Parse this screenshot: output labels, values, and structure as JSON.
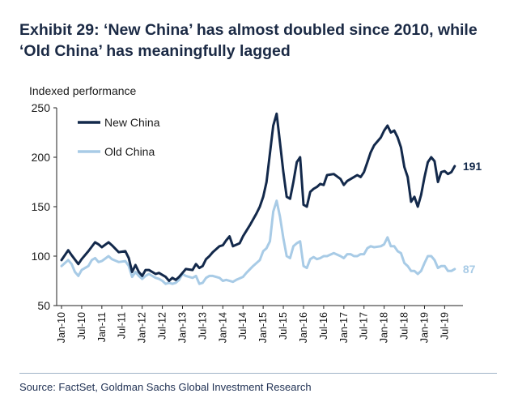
{
  "header": {
    "title": "Exhibit 29: ‘New China’ has almost doubled since 2010, while ‘Old China’ has meaningfully lagged"
  },
  "footer": {
    "source": "Source: FactSet, Goldman Sachs Global Investment Research"
  },
  "colors": {
    "new_china": "#13294b",
    "old_china": "#a8cbe6",
    "axis": "#222222",
    "text": "#1a1a1a"
  },
  "chart_data": {
    "type": "line",
    "title": "",
    "ylabel": "Indexed performance",
    "xlabel": "",
    "ylim": [
      50,
      250
    ],
    "yticks": [
      50,
      100,
      150,
      200,
      250
    ],
    "grid": false,
    "legend": "top-left",
    "xticks": [
      "Jan-10",
      "Jul-10",
      "Jan-11",
      "Jul-11",
      "Jan-12",
      "Jul-12",
      "Jan-13",
      "Jul-13",
      "Jan-14",
      "Jul-14",
      "Jan-15",
      "Jul-15",
      "Jan-16",
      "Jul-16",
      "Jan-17",
      "Jul-17",
      "Jan-18",
      "Jul-18",
      "Jan-19",
      "Jul-19"
    ],
    "series": [
      {
        "name": "New China",
        "end_label": "191",
        "points": [
          [
            "Jan-10",
            96
          ],
          [
            "Mar-10",
            106
          ],
          [
            "Apr-10",
            101
          ],
          [
            "Jun-10",
            92
          ],
          [
            "Jul-10",
            97
          ],
          [
            "Sep-10",
            105
          ],
          [
            "Nov-10",
            114
          ],
          [
            "Dec-10",
            112
          ],
          [
            "Jan-11",
            109
          ],
          [
            "Mar-11",
            114
          ],
          [
            "Apr-11",
            111
          ],
          [
            "Jun-11",
            104
          ],
          [
            "Aug-11",
            105
          ],
          [
            "Sep-11",
            98
          ],
          [
            "Oct-11",
            84
          ],
          [
            "Nov-11",
            91
          ],
          [
            "Dec-11",
            84
          ],
          [
            "Jan-12",
            80
          ],
          [
            "Feb-12",
            86
          ],
          [
            "Mar-12",
            86
          ],
          [
            "May-12",
            82
          ],
          [
            "Jun-12",
            83
          ],
          [
            "Jul-12",
            81
          ],
          [
            "Aug-12",
            79
          ],
          [
            "Sep-12",
            75
          ],
          [
            "Oct-12",
            78
          ],
          [
            "Nov-12",
            76
          ],
          [
            "Dec-12",
            79
          ],
          [
            "Jan-13",
            83
          ],
          [
            "Feb-13",
            87
          ],
          [
            "Apr-13",
            86
          ],
          [
            "May-13",
            92
          ],
          [
            "Jun-13",
            88
          ],
          [
            "Jul-13",
            90
          ],
          [
            "Aug-13",
            97
          ],
          [
            "Sep-13",
            100
          ],
          [
            "Oct-13",
            104
          ],
          [
            "Dec-13",
            110
          ],
          [
            "Jan-14",
            111
          ],
          [
            "Feb-14",
            116
          ],
          [
            "Mar-14",
            120
          ],
          [
            "Apr-14",
            110
          ],
          [
            "Jun-14",
            113
          ],
          [
            "Jul-14",
            120
          ],
          [
            "Sep-14",
            131
          ],
          [
            "Nov-14",
            143
          ],
          [
            "Dec-14",
            150
          ],
          [
            "Jan-15",
            160
          ],
          [
            "Feb-15",
            175
          ],
          [
            "Apr-15",
            232
          ],
          [
            "May-15",
            244
          ],
          [
            "Jun-15",
            215
          ],
          [
            "Jul-15",
            185
          ],
          [
            "Aug-15",
            160
          ],
          [
            "Sep-15",
            158
          ],
          [
            "Oct-15",
            175
          ],
          [
            "Nov-15",
            195
          ],
          [
            "Dec-15",
            200
          ],
          [
            "Jan-16",
            152
          ],
          [
            "Feb-16",
            150
          ],
          [
            "Mar-16",
            165
          ],
          [
            "Apr-16",
            168
          ],
          [
            "May-16",
            170
          ],
          [
            "Jun-16",
            173
          ],
          [
            "Jul-16",
            172
          ],
          [
            "Aug-16",
            182
          ],
          [
            "Oct-16",
            183
          ],
          [
            "Dec-16",
            178
          ],
          [
            "Jan-17",
            172
          ],
          [
            "Feb-17",
            176
          ],
          [
            "Apr-17",
            180
          ],
          [
            "May-17",
            182
          ],
          [
            "Jun-17",
            180
          ],
          [
            "Jul-17",
            185
          ],
          [
            "Aug-17",
            195
          ],
          [
            "Sep-17",
            205
          ],
          [
            "Oct-17",
            212
          ],
          [
            "Dec-17",
            220
          ],
          [
            "Jan-18",
            227
          ],
          [
            "Feb-18",
            232
          ],
          [
            "Mar-18",
            225
          ],
          [
            "Apr-18",
            227
          ],
          [
            "May-18",
            220
          ],
          [
            "Jun-18",
            210
          ],
          [
            "Jul-18",
            190
          ],
          [
            "Aug-18",
            180
          ],
          [
            "Sep-18",
            155
          ],
          [
            "Oct-18",
            160
          ],
          [
            "Nov-18",
            150
          ],
          [
            "Dec-18",
            162
          ],
          [
            "Jan-19",
            180
          ],
          [
            "Feb-19",
            195
          ],
          [
            "Mar-19",
            200
          ],
          [
            "Apr-19",
            196
          ],
          [
            "May-19",
            175
          ],
          [
            "Jun-19",
            185
          ],
          [
            "Jul-19",
            186
          ],
          [
            "Aug-19",
            183
          ],
          [
            "Sep-19",
            185
          ],
          [
            "Oct-19",
            191
          ]
        ]
      },
      {
        "name": "Old China",
        "end_label": "87",
        "points": [
          [
            "Jan-10",
            90
          ],
          [
            "Mar-10",
            96
          ],
          [
            "Apr-10",
            92
          ],
          [
            "May-10",
            84
          ],
          [
            "Jun-10",
            80
          ],
          [
            "Jul-10",
            86
          ],
          [
            "Sep-10",
            90
          ],
          [
            "Oct-10",
            96
          ],
          [
            "Nov-10",
            98
          ],
          [
            "Dec-10",
            94
          ],
          [
            "Jan-11",
            95
          ],
          [
            "Mar-11",
            100
          ],
          [
            "Apr-11",
            97
          ],
          [
            "Jun-11",
            94
          ],
          [
            "Aug-11",
            95
          ],
          [
            "Sep-11",
            90
          ],
          [
            "Oct-11",
            79
          ],
          [
            "Nov-11",
            84
          ],
          [
            "Dec-11",
            80
          ],
          [
            "Jan-12",
            77
          ],
          [
            "Feb-12",
            80
          ],
          [
            "Mar-12",
            82
          ],
          [
            "May-12",
            78
          ],
          [
            "Jun-12",
            77
          ],
          [
            "Jul-12",
            75
          ],
          [
            "Aug-12",
            72
          ],
          [
            "Sep-12",
            73
          ],
          [
            "Oct-12",
            72
          ],
          [
            "Nov-12",
            73
          ],
          [
            "Dec-12",
            76
          ],
          [
            "Jan-13",
            82
          ],
          [
            "Feb-13",
            80
          ],
          [
            "Apr-13",
            78
          ],
          [
            "May-13",
            80
          ],
          [
            "Jun-13",
            72
          ],
          [
            "Jul-13",
            73
          ],
          [
            "Aug-13",
            78
          ],
          [
            "Sep-13",
            80
          ],
          [
            "Oct-13",
            80
          ],
          [
            "Dec-13",
            78
          ],
          [
            "Jan-14",
            75
          ],
          [
            "Feb-14",
            76
          ],
          [
            "Apr-14",
            74
          ],
          [
            "May-14",
            76
          ],
          [
            "Jul-14",
            79
          ],
          [
            "Aug-14",
            83
          ],
          [
            "Oct-14",
            90
          ],
          [
            "Dec-14",
            96
          ],
          [
            "Jan-15",
            105
          ],
          [
            "Feb-15",
            108
          ],
          [
            "Mar-15",
            115
          ],
          [
            "Apr-15",
            145
          ],
          [
            "May-15",
            156
          ],
          [
            "Jun-15",
            140
          ],
          [
            "Jul-15",
            118
          ],
          [
            "Aug-15",
            100
          ],
          [
            "Sep-15",
            98
          ],
          [
            "Oct-15",
            110
          ],
          [
            "Nov-15",
            113
          ],
          [
            "Dec-15",
            115
          ],
          [
            "Jan-16",
            90
          ],
          [
            "Feb-16",
            88
          ],
          [
            "Mar-16",
            97
          ],
          [
            "Apr-16",
            99
          ],
          [
            "May-16",
            97
          ],
          [
            "Jun-16",
            98
          ],
          [
            "Jul-16",
            100
          ],
          [
            "Aug-16",
            100
          ],
          [
            "Oct-16",
            103
          ],
          [
            "Dec-16",
            100
          ],
          [
            "Jan-17",
            98
          ],
          [
            "Feb-17",
            102
          ],
          [
            "Mar-17",
            102
          ],
          [
            "Apr-17",
            100
          ],
          [
            "May-17",
            100
          ],
          [
            "Jun-17",
            102
          ],
          [
            "Jul-17",
            102
          ],
          [
            "Aug-17",
            108
          ],
          [
            "Sep-17",
            110
          ],
          [
            "Oct-17",
            109
          ],
          [
            "Dec-17",
            110
          ],
          [
            "Jan-18",
            112
          ],
          [
            "Feb-18",
            119
          ],
          [
            "Mar-18",
            110
          ],
          [
            "Apr-18",
            110
          ],
          [
            "May-18",
            105
          ],
          [
            "Jun-18",
            103
          ],
          [
            "Jul-18",
            93
          ],
          [
            "Aug-18",
            90
          ],
          [
            "Sep-18",
            85
          ],
          [
            "Oct-18",
            85
          ],
          [
            "Nov-18",
            82
          ],
          [
            "Dec-18",
            85
          ],
          [
            "Jan-19",
            93
          ],
          [
            "Feb-19",
            100
          ],
          [
            "Mar-19",
            100
          ],
          [
            "Apr-19",
            96
          ],
          [
            "May-19",
            88
          ],
          [
            "Jun-19",
            90
          ],
          [
            "Jul-19",
            90
          ],
          [
            "Aug-19",
            85
          ],
          [
            "Sep-19",
            85
          ],
          [
            "Oct-19",
            87
          ]
        ]
      }
    ]
  }
}
